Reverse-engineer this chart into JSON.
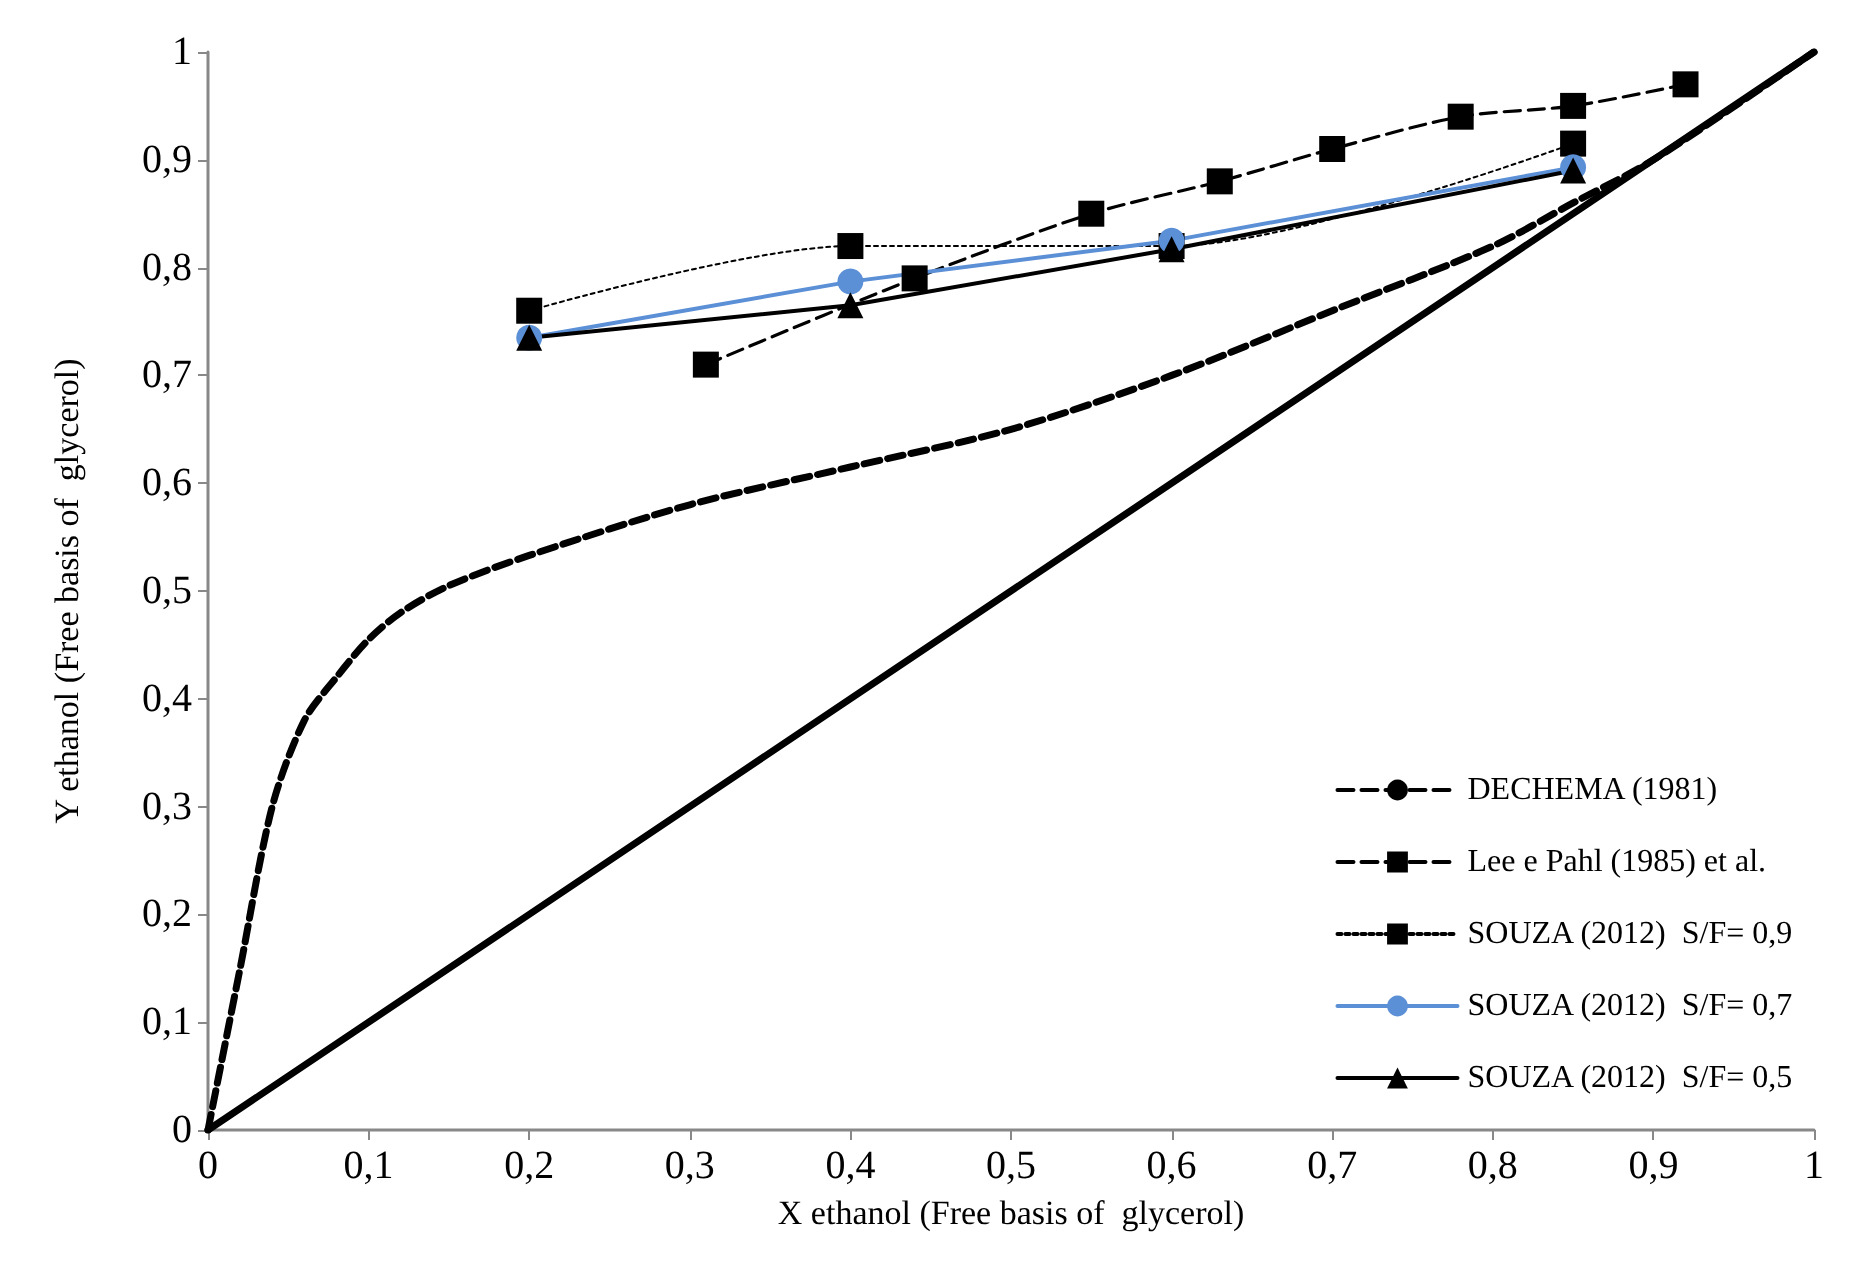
{
  "chart_data": {
    "type": "line",
    "xlabel": "X ethanol (Free basis of  glycerol)",
    "ylabel": "Y ethanol (Free basis of  glycerol)",
    "xlim": [
      0,
      1
    ],
    "ylim": [
      0,
      1
    ],
    "xticks": [
      0,
      {
        "value": 0.1,
        "label": "0,1"
      },
      {
        "value": 0.2,
        "label": "0,2"
      },
      {
        "value": 0.3,
        "label": "0,3"
      },
      {
        "value": 0.4,
        "label": "0,4"
      },
      {
        "value": 0.5,
        "label": "0,5"
      },
      {
        "value": 0.6,
        "label": "0,6"
      },
      {
        "value": 0.7,
        "label": "0,7"
      },
      {
        "value": 0.8,
        "label": "0,8"
      },
      {
        "value": 0.9,
        "label": "0,9"
      },
      1
    ],
    "yticks": [
      0,
      {
        "value": 0.1,
        "label": "0,1"
      },
      {
        "value": 0.2,
        "label": "0,2"
      },
      {
        "value": 0.3,
        "label": "0,3"
      },
      {
        "value": 0.4,
        "label": "0,4"
      },
      {
        "value": 0.5,
        "label": "0,5"
      },
      {
        "value": 0.6,
        "label": "0,6"
      },
      {
        "value": 0.7,
        "label": "0,7"
      },
      {
        "value": 0.8,
        "label": "0,8"
      },
      {
        "value": 0.9,
        "label": "0,9"
      },
      1
    ],
    "legend": "bottom right",
    "series": [
      {
        "name": "DECHEMA (1981)",
        "color": "#000000",
        "marker": "none",
        "line_style": "dashed",
        "x": [
          0,
          0.02,
          0.04,
          0.06,
          0.08,
          0.1,
          0.12,
          0.15,
          0.2,
          0.3,
          0.4,
          0.5,
          0.6,
          0.7,
          0.8,
          0.85,
          0.9,
          1
        ],
        "values": [
          0,
          0.15,
          0.3,
          0.38,
          0.42,
          0.455,
          0.48,
          0.505,
          0.533,
          0.58,
          0.615,
          0.65,
          0.7,
          0.76,
          0.82,
          0.86,
          0.9,
          1
        ]
      },
      {
        "name": "Lee e Pahl (1985) et al.",
        "color": "#000000",
        "marker": "square",
        "line_style": "dashed",
        "x": [
          0.31,
          0.44,
          0.55,
          0.63,
          0.7,
          0.78,
          0.85,
          0.92
        ],
        "values": [
          0.71,
          0.79,
          0.85,
          0.88,
          0.91,
          0.94,
          0.95,
          0.97
        ]
      },
      {
        "name": "SOUZA (2012)  S/F= 0,9",
        "color": "#000000",
        "marker": "square",
        "line_style": "dotted",
        "x": [
          0.2,
          0.4,
          0.6,
          0.85
        ],
        "values": [
          0.76,
          0.82,
          0.82,
          0.915
        ]
      },
      {
        "name": "SOUZA (2012)  S/F= 0,7",
        "color": "#5b8fd6",
        "marker": "circle",
        "line_style": "solid",
        "x": [
          0.2,
          0.4,
          0.6,
          0.85
        ],
        "values": [
          0.735,
          0.787,
          0.825,
          0.893
        ]
      },
      {
        "name": "SOUZA (2012)  S/F= 0,5",
        "color": "#000000",
        "marker": "triangle",
        "line_style": "solid",
        "x": [
          0.2,
          0.4,
          0.6,
          0.85
        ],
        "values": [
          0.735,
          0.765,
          0.817,
          0.89
        ]
      },
      {
        "color": "#000000",
        "marker": "none",
        "line_style": "solid",
        "x": [
          0,
          1
        ],
        "values": [
          0,
          1
        ]
      }
    ]
  }
}
